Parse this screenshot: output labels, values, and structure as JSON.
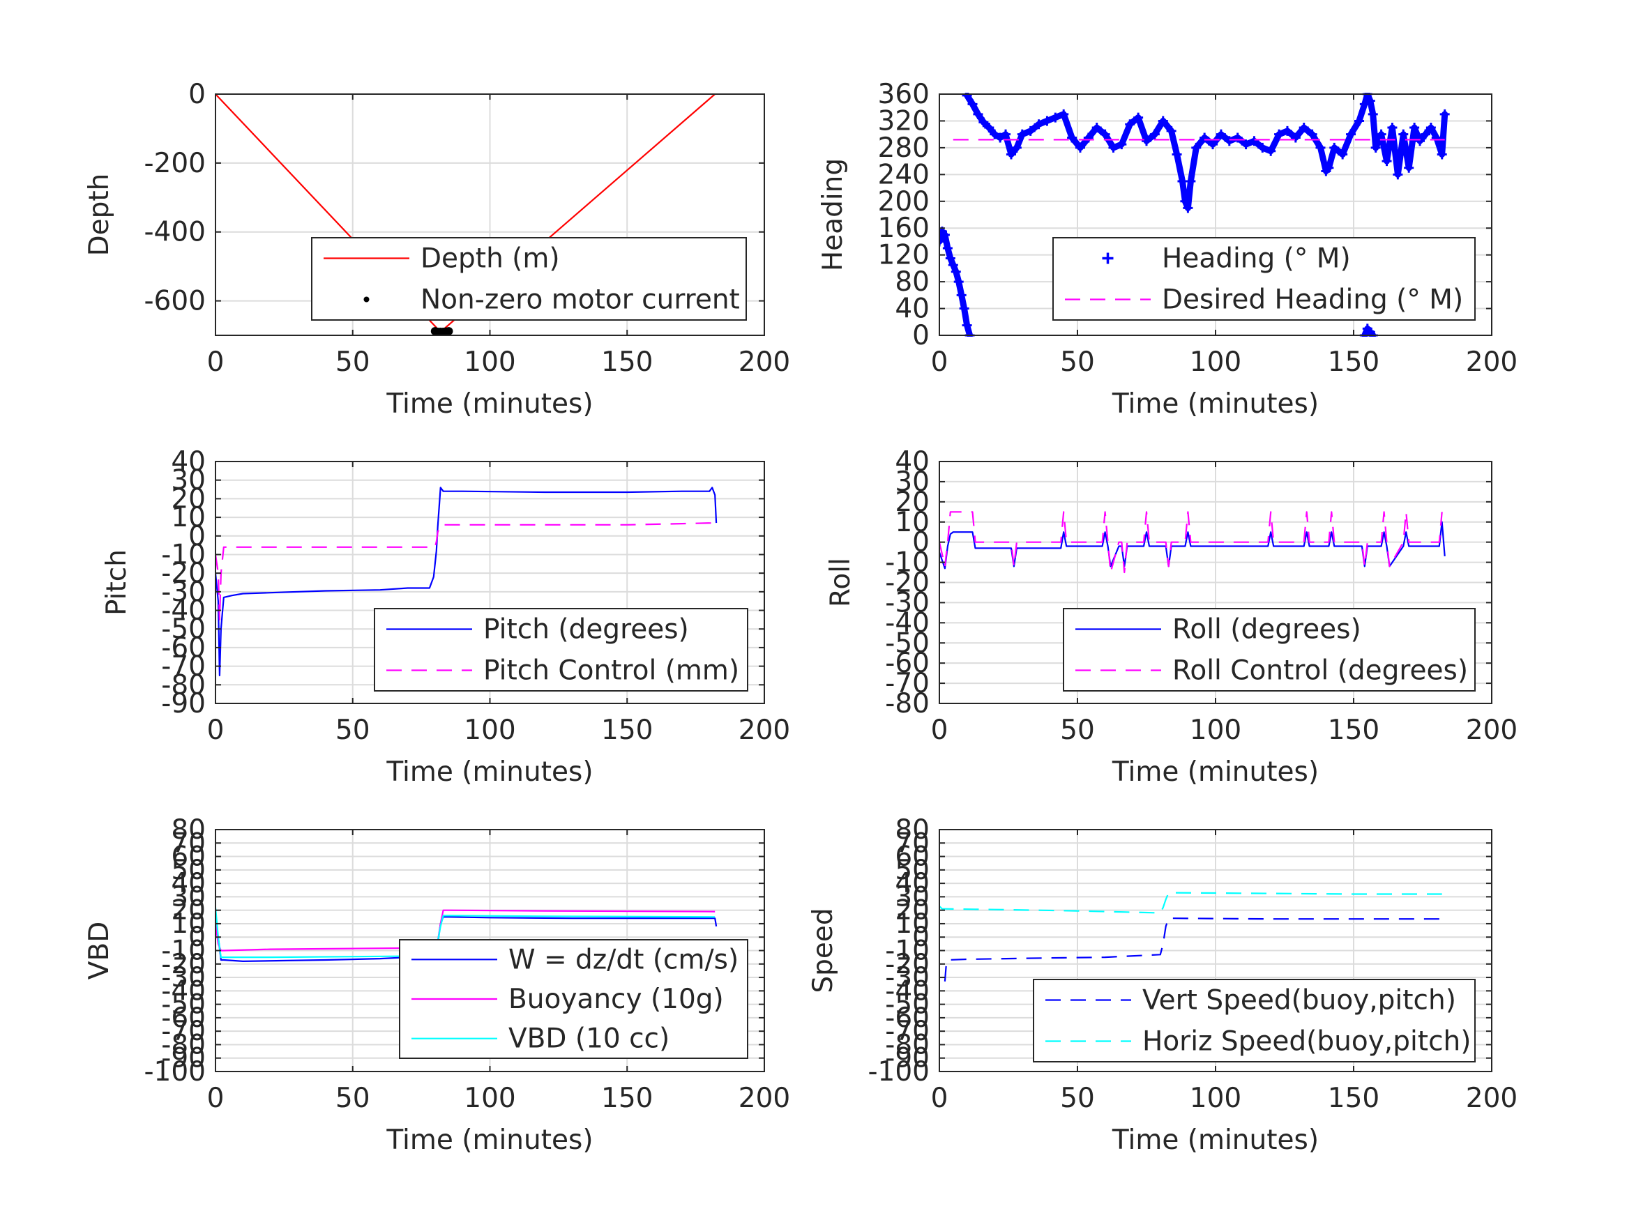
{
  "chart_data": [
    {
      "id": "depth",
      "type": "line",
      "xlabel": "Time (minutes)",
      "ylabel": "Depth",
      "xlim": [
        0,
        200
      ],
      "ylim": [
        -700,
        0
      ],
      "xticks": [
        0,
        50,
        100,
        150,
        200
      ],
      "yticks": [
        0,
        -200,
        -400,
        -600
      ],
      "grid": true,
      "legend_position": "bottom-right",
      "series": [
        {
          "name": "Depth (m)",
          "style": "solid",
          "marker": "none",
          "color": "#ff0000",
          "x": [
            0,
            82,
            182
          ],
          "y": [
            0,
            -690,
            0
          ]
        },
        {
          "name": "Non-zero motor current",
          "style": "none",
          "marker": "dot",
          "color": "#000000",
          "x": [
            80,
            81,
            82,
            83,
            84,
            85
          ],
          "y": [
            -688,
            -690,
            -690,
            -690,
            -689,
            -688
          ]
        }
      ]
    },
    {
      "id": "heading",
      "type": "line",
      "xlabel": "Time (minutes)",
      "ylabel": "Heading",
      "xlim": [
        0,
        200
      ],
      "ylim": [
        0,
        360
      ],
      "xticks": [
        0,
        50,
        100,
        150,
        200
      ],
      "yticks": [
        0,
        40,
        80,
        120,
        160,
        200,
        240,
        280,
        320,
        360
      ],
      "grid": true,
      "legend_position": "bottom-right",
      "series": [
        {
          "name": "Heading (° M)",
          "style": "none",
          "marker": "plus",
          "color": "#0000ff",
          "segments": [
            {
              "x": [
                0,
                1,
                2,
                3,
                4,
                5,
                6,
                7,
                8,
                9,
                10,
                11
              ],
              "y": [
                140,
                155,
                150,
                130,
                115,
                105,
                95,
                80,
                60,
                40,
                15,
                0
              ]
            },
            {
              "x": [
                10,
                12,
                14,
                16,
                18,
                20,
                22,
                24,
                26,
                28,
                30,
                33,
                36,
                39,
                42,
                45,
                48,
                51,
                54,
                57,
                60,
                63,
                66,
                69,
                72,
                75,
                78,
                81,
                84,
                86,
                88,
                89,
                90,
                91,
                93,
                96,
                99,
                102,
                105,
                108,
                111,
                114,
                117,
                120,
                123,
                126,
                129,
                132,
                135,
                138,
                140,
                141,
                143,
                146,
                149,
                152,
                154,
                155,
                156,
                157,
                158,
                160,
                162,
                164,
                166,
                168,
                170,
                172,
                174,
                176,
                178,
                180,
                182,
                183
              ],
              "y": [
                358,
                345,
                330,
                318,
                310,
                300,
                295,
                300,
                270,
                280,
                300,
                305,
                315,
                320,
                325,
                330,
                295,
                280,
                295,
                310,
                300,
                280,
                285,
                315,
                325,
                290,
                300,
                320,
                305,
                270,
                230,
                200,
                190,
                230,
                280,
                295,
                285,
                300,
                290,
                295,
                285,
                290,
                280,
                275,
                300,
                305,
                295,
                310,
                300,
                280,
                245,
                250,
                280,
                270,
                300,
                320,
                345,
                360,
                350,
                330,
                280,
                300,
                260,
                310,
                240,
                300,
                250,
                310,
                290,
                300,
                310,
                295,
                270,
                330
              ]
            },
            {
              "x": [
                154,
                155,
                156,
                157
              ],
              "y": [
                0,
                10,
                5,
                0
              ]
            }
          ]
        },
        {
          "name": "Desired Heading (° M)",
          "style": "dashed",
          "marker": "none",
          "color": "#ff00ff",
          "x": [
            5,
            183
          ],
          "y": [
            292,
            292
          ]
        }
      ]
    },
    {
      "id": "pitch",
      "type": "line",
      "xlabel": "Time (minutes)",
      "ylabel": "Pitch",
      "xlim": [
        0,
        200
      ],
      "ylim": [
        -90,
        40
      ],
      "xticks": [
        0,
        50,
        100,
        150,
        200
      ],
      "yticks": [
        40,
        30,
        20,
        10,
        0,
        -10,
        -20,
        -30,
        -40,
        -50,
        -60,
        -70,
        -80,
        -90
      ],
      "grid": true,
      "legend_position": "bottom-right",
      "series": [
        {
          "name": "Pitch (degrees)",
          "style": "solid",
          "marker": "none",
          "color": "#0000ff",
          "x": [
            0,
            1,
            1.5,
            2,
            3,
            6,
            10,
            20,
            40,
            60,
            70,
            78,
            79.5,
            80,
            80.5,
            81,
            82,
            83,
            90,
            120,
            150,
            170,
            180,
            181,
            182,
            182.5
          ],
          "y": [
            -20,
            -35,
            -75,
            -50,
            -33,
            -32,
            -31,
            -30.5,
            -29.5,
            -29,
            -28,
            -28,
            -22,
            -15,
            -8,
            5,
            26,
            24,
            24,
            23.5,
            23.5,
            24,
            24,
            26,
            22,
            7
          ]
        },
        {
          "name": "Pitch Control (mm)",
          "style": "dashed",
          "marker": "none",
          "color": "#ff00ff",
          "x": [
            0,
            1,
            1.5,
            2,
            3,
            80,
            80.5,
            81,
            82,
            100,
            150,
            182
          ],
          "y": [
            -10,
            -20,
            -45,
            -20,
            -6,
            -6,
            -3,
            2,
            6,
            6,
            6,
            7
          ]
        }
      ]
    },
    {
      "id": "roll",
      "type": "line",
      "xlabel": "Time (minutes)",
      "ylabel": "Roll",
      "xlim": [
        0,
        200
      ],
      "ylim": [
        -80,
        40
      ],
      "xticks": [
        0,
        50,
        100,
        150,
        200
      ],
      "yticks": [
        40,
        30,
        20,
        10,
        0,
        -10,
        -20,
        -30,
        -40,
        -50,
        -60,
        -70,
        -80
      ],
      "grid": true,
      "legend_position": "bottom-right",
      "series": [
        {
          "name": "Roll (degrees)",
          "style": "solid",
          "marker": "none",
          "color": "#0000ff",
          "x": [
            0,
            2,
            3,
            4,
            5,
            12,
            13,
            26,
            27,
            28,
            44,
            45,
            46,
            47,
            59,
            60,
            61,
            62,
            65,
            66,
            67,
            68,
            74,
            75,
            76,
            77,
            82,
            83,
            84,
            89,
            90,
            91,
            92,
            119,
            120,
            121,
            132,
            133,
            134,
            141,
            142,
            143,
            153,
            154,
            155,
            156,
            160,
            161,
            162,
            163,
            168,
            169,
            170,
            181,
            182,
            183
          ],
          "y": [
            -5,
            -13,
            -2,
            4,
            5,
            5,
            -3,
            -3,
            -12,
            -3,
            -3,
            5,
            -2,
            -2,
            -2,
            5,
            -2,
            -12,
            -2,
            -2,
            -12,
            -2,
            -2,
            5,
            -2,
            -2,
            -2,
            -12,
            -2,
            -2,
            5,
            -2,
            -2,
            -2,
            5,
            -2,
            -2,
            5,
            -2,
            -2,
            5,
            -2,
            -2,
            -12,
            -2,
            -2,
            -2,
            5,
            -2,
            -12,
            -2,
            5,
            -2,
            -2,
            10,
            -7
          ]
        },
        {
          "name": "Roll Control (degrees)",
          "style": "dashed",
          "marker": "none",
          "color": "#ff00ff",
          "x": [
            0,
            2,
            3,
            4,
            5,
            12,
            13,
            26,
            27,
            28,
            44,
            45,
            46,
            47,
            59,
            60,
            61,
            62,
            65,
            66,
            67,
            68,
            74,
            75,
            76,
            77,
            82,
            83,
            84,
            89,
            90,
            91,
            92,
            119,
            120,
            121,
            132,
            133,
            134,
            141,
            142,
            143,
            153,
            154,
            155,
            156,
            160,
            161,
            162,
            163,
            168,
            169,
            170,
            181,
            182
          ],
          "y": [
            0,
            -12,
            0,
            15,
            15,
            15,
            0,
            0,
            -12,
            0,
            0,
            15,
            0,
            0,
            0,
            15,
            0,
            -15,
            0,
            0,
            -15,
            0,
            0,
            15,
            0,
            0,
            0,
            -12,
            0,
            0,
            15,
            0,
            0,
            0,
            15,
            0,
            0,
            15,
            0,
            0,
            15,
            0,
            0,
            -12,
            0,
            0,
            0,
            15,
            0,
            -12,
            0,
            15,
            0,
            0,
            15
          ]
        }
      ]
    },
    {
      "id": "vbd",
      "type": "line",
      "xlabel": "Time (minutes)",
      "ylabel": "VBD",
      "xlim": [
        0,
        200
      ],
      "ylim": [
        -100,
        80
      ],
      "xticks": [
        0,
        50,
        100,
        150,
        200
      ],
      "yticks": [
        80,
        70,
        60,
        50,
        40,
        30,
        20,
        10,
        0,
        -10,
        -20,
        -30,
        -40,
        -50,
        -60,
        -70,
        -80,
        -90,
        -100
      ],
      "grid": true,
      "legend_position": "bottom-right",
      "series": [
        {
          "name": "W = dz/dt (cm/s)",
          "style": "solid",
          "marker": "none",
          "color": "#0000ff",
          "x": [
            0,
            1,
            2,
            3,
            10,
            40,
            60,
            80,
            81,
            82,
            83,
            85,
            100,
            130,
            160,
            182,
            182.5
          ],
          "y": [
            12,
            0,
            -17,
            -17,
            -18,
            -17,
            -16,
            -14,
            -5,
            10,
            15,
            15,
            14.5,
            14,
            14,
            14,
            8
          ]
        },
        {
          "name": "Buoyancy (10g)",
          "style": "solid",
          "marker": "none",
          "color": "#ff00ff",
          "x": [
            0,
            1,
            2,
            3,
            20,
            50,
            80,
            81,
            82,
            83,
            85,
            120,
            182
          ],
          "y": [
            10,
            -5,
            -10,
            -10,
            -9,
            -8.5,
            -8,
            -3,
            10,
            20,
            20,
            19.5,
            19
          ]
        },
        {
          "name": "VBD (10 cc)",
          "style": "solid",
          "marker": "none",
          "color": "#00ffff",
          "x": [
            0,
            1,
            2,
            3,
            20,
            50,
            80,
            81,
            82,
            83,
            85,
            120,
            182
          ],
          "y": [
            22,
            0,
            -15,
            -15,
            -15,
            -14.5,
            -14,
            -3,
            8,
            16,
            16,
            15.5,
            15
          ]
        }
      ]
    },
    {
      "id": "speed",
      "type": "line",
      "xlabel": "Time (minutes)",
      "ylabel": "Speed",
      "xlim": [
        0,
        200
      ],
      "ylim": [
        -100,
        80
      ],
      "xticks": [
        0,
        50,
        100,
        150,
        200
      ],
      "yticks": [
        80,
        70,
        60,
        50,
        40,
        30,
        20,
        10,
        0,
        -10,
        -20,
        -30,
        -40,
        -50,
        -60,
        -70,
        -80,
        -90,
        -100
      ],
      "grid": true,
      "legend_position": "bottom-right",
      "series": [
        {
          "name": "Vert Speed(buoy,pitch)",
          "style": "dashed",
          "marker": "none",
          "color": "#0000ff",
          "x": [
            2,
            2.5,
            3,
            10,
            40,
            60,
            80,
            81,
            82,
            83,
            85,
            120,
            150,
            182
          ],
          "y": [
            -33,
            -20,
            -17,
            -16.5,
            -15.5,
            -15,
            -13,
            -5,
            8,
            14,
            14,
            13.5,
            13.5,
            13.5
          ]
        },
        {
          "name": "Horiz Speed(buoy,pitch)",
          "style": "dashed",
          "marker": "none",
          "color": "#00ffff",
          "x": [
            0,
            1,
            2,
            20,
            50,
            80,
            81,
            82,
            83,
            85,
            120,
            150,
            182
          ],
          "y": [
            23,
            21,
            21,
            20.5,
            19.5,
            18,
            22,
            28,
            33,
            33,
            32.5,
            32,
            32
          ]
        }
      ]
    }
  ]
}
